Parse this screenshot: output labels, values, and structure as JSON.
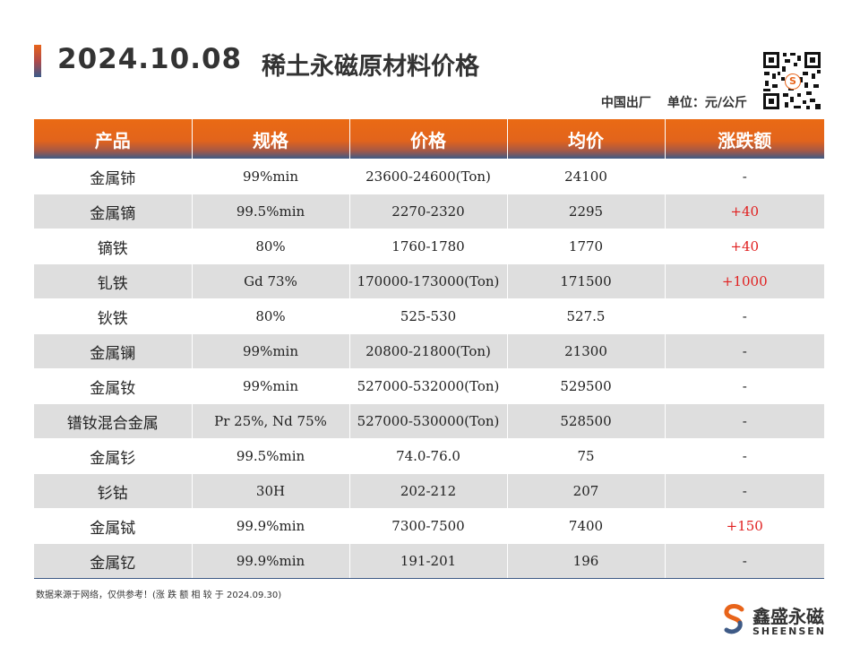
{
  "header": {
    "date": "2024.10.08",
    "title": "稀土永磁原材料价格",
    "origin": "中国出厂",
    "unit": "单位：元/公斤"
  },
  "table": {
    "columns": [
      "产品",
      "规格",
      "价格",
      "均价",
      "涨跌额"
    ],
    "rows": [
      {
        "product": "金属铈",
        "spec": "99%min",
        "price": "23600-24600(Ton)",
        "avg": "24100",
        "change": "-"
      },
      {
        "product": "金属镝",
        "spec": "99.5%min",
        "price": "2270-2320",
        "avg": "2295",
        "change": "+40"
      },
      {
        "product": "镝铁",
        "spec": "80%",
        "price": "1760-1780",
        "avg": "1770",
        "change": "+40"
      },
      {
        "product": "钆铁",
        "spec": "Gd 73%",
        "price": "170000-173000(Ton)",
        "avg": "171500",
        "change": "+1000"
      },
      {
        "product": "钬铁",
        "spec": "80%",
        "price": "525-530",
        "avg": "527.5",
        "change": "-"
      },
      {
        "product": "金属镧",
        "spec": "99%min",
        "price": "20800-21800(Ton)",
        "avg": "21300",
        "change": "-"
      },
      {
        "product": "金属钕",
        "spec": "99%min",
        "price": "527000-532000(Ton)",
        "avg": "529500",
        "change": "-"
      },
      {
        "product": "镨钕混合金属",
        "spec": "Pr 25%, Nd 75%",
        "price": "527000-530000(Ton)",
        "avg": "528500",
        "change": "-"
      },
      {
        "product": "金属钐",
        "spec": "99.5%min",
        "price": "74.0-76.0",
        "avg": "75",
        "change": "-"
      },
      {
        "product": "钐钴",
        "spec": "30H",
        "price": "202-212",
        "avg": "207",
        "change": "-"
      },
      {
        "product": "金属铽",
        "spec": "99.9%min",
        "price": "7300-7500",
        "avg": "7400",
        "change": "+150"
      },
      {
        "product": "金属钇",
        "spec": "99.9%min",
        "price": "191-201",
        "avg": "196",
        "change": "-"
      }
    ]
  },
  "footnote": "数据来源于网络，仅供参考！(涨 跌 额 相 较 于 2024.09.30)",
  "logo": {
    "name": "鑫盛永磁",
    "sub": "SHEENSEN",
    "qr_center": "S"
  },
  "colors": {
    "accent": "#e8641a",
    "header_blue": "#3e5a86",
    "row_alt": "#dedede",
    "increase": "#e02020"
  }
}
